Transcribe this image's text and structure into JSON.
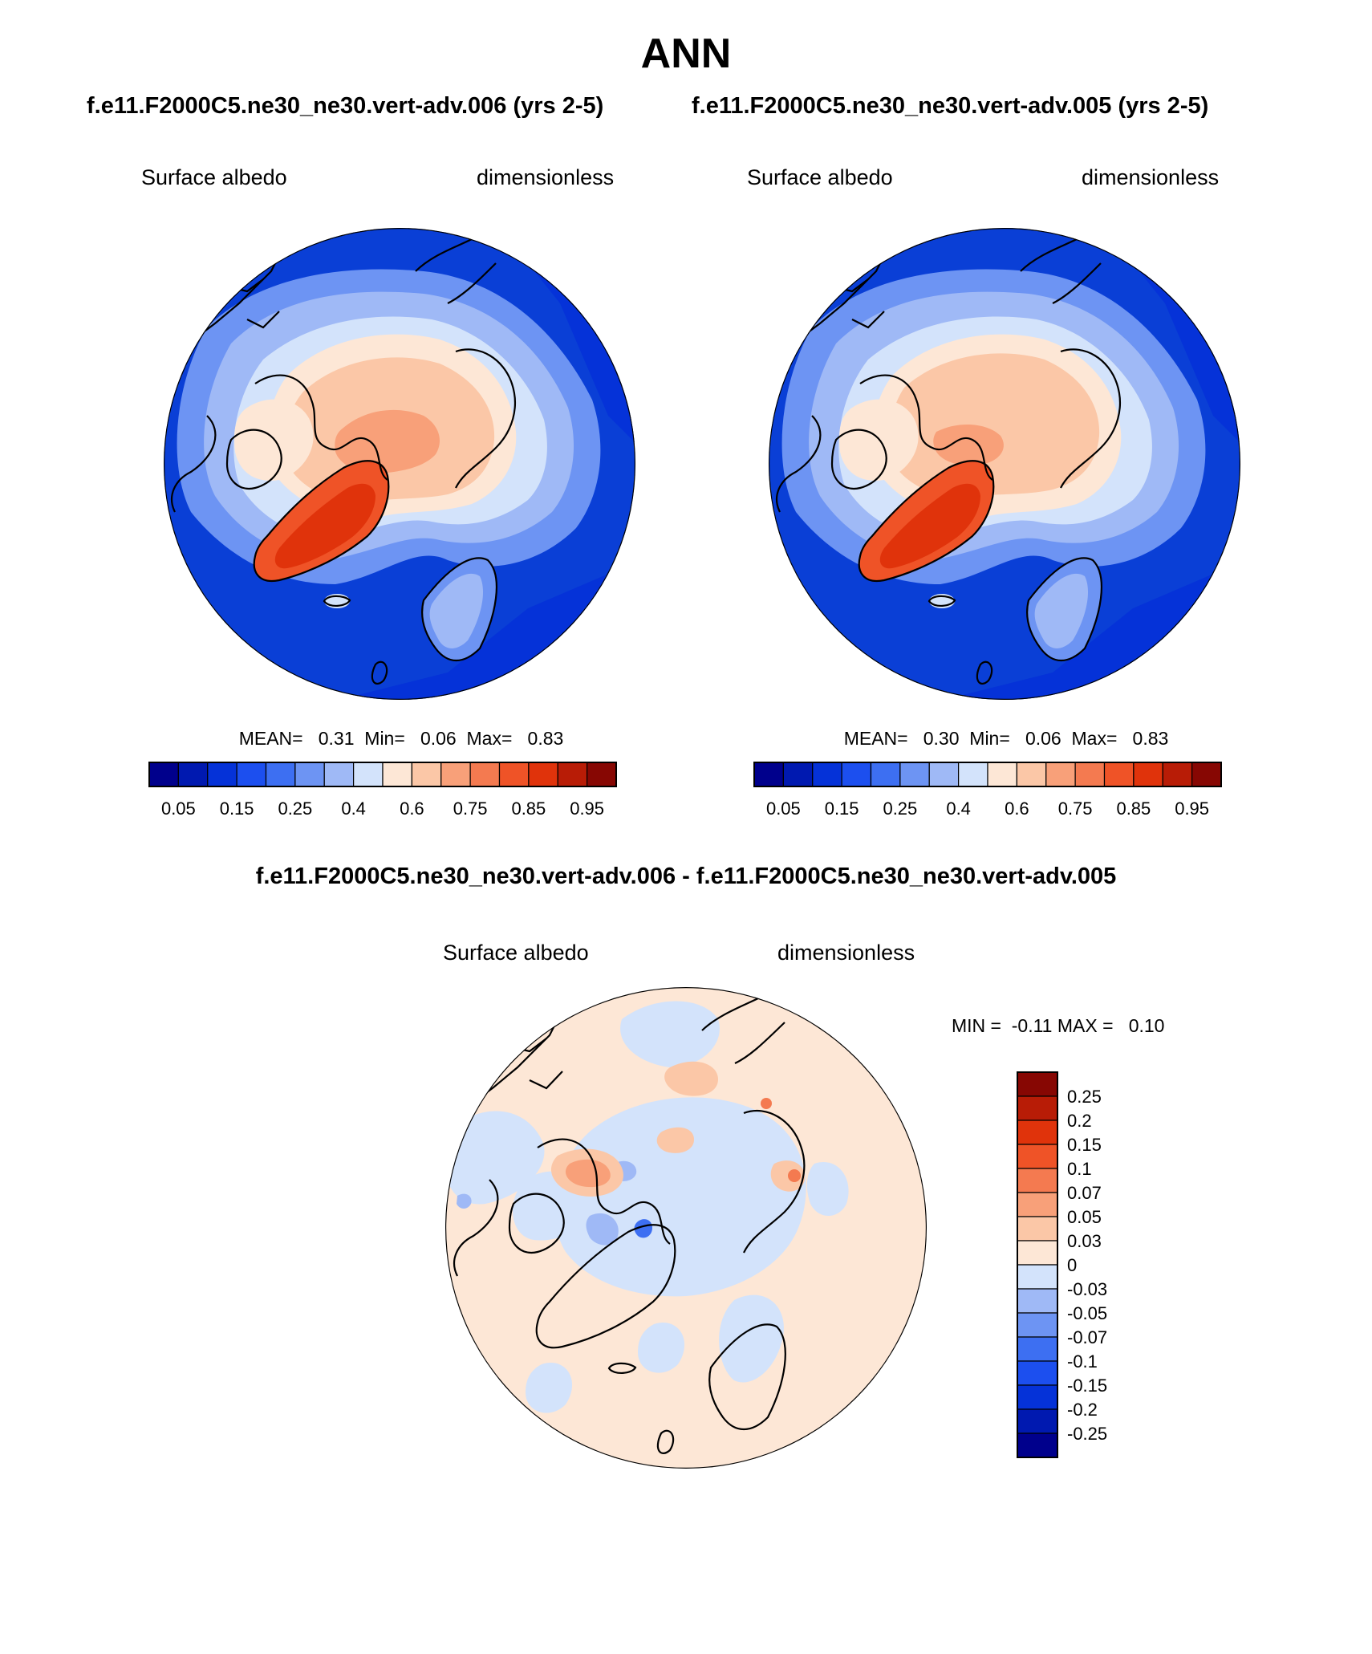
{
  "page": {
    "title": "ANN",
    "subtitle_left": "f.e11.F2000C5.ne30_ne30.vert-adv.006 (yrs 2-5)",
    "subtitle_right": "f.e11.F2000C5.ne30_ne30.vert-adv.005 (yrs 2-5)",
    "diff_title": "f.e11.F2000C5.ne30_ne30.vert-adv.006 - f.e11.F2000C5.ne30_ne30.vert-adv.005"
  },
  "chart_data": [
    {
      "type": "heatmap",
      "projection": "north-polar-stereographic",
      "variable_label": "Surface albedo",
      "units_label": "dimensionless",
      "stats_text": "MEAN=   0.31  Min=   0.06  Max=   0.83",
      "stats": {
        "mean": 0.31,
        "min": 0.06,
        "max": 0.83
      },
      "colorbar": {
        "orientation": "horizontal",
        "levels": [
          "0.05",
          "0.15",
          "0.25",
          "0.4",
          "0.6",
          "0.75",
          "0.85",
          "0.95"
        ],
        "colors": [
          "#00008c",
          "#0019b0",
          "#0532d8",
          "#1c4fef",
          "#3d6ff2",
          "#6d94f3",
          "#9fb9f6",
          "#d3e3fb",
          "#fde7d6",
          "#fbc7a7",
          "#f8a079",
          "#f47a50",
          "#ef5327",
          "#e0330b",
          "#b81c06",
          "#870703"
        ]
      }
    },
    {
      "type": "heatmap",
      "projection": "north-polar-stereographic",
      "variable_label": "Surface albedo",
      "units_label": "dimensionless",
      "stats_text": "MEAN=   0.30  Min=   0.06  Max=   0.83",
      "stats": {
        "mean": 0.3,
        "min": 0.06,
        "max": 0.83
      },
      "colorbar": {
        "orientation": "horizontal",
        "levels": [
          "0.05",
          "0.15",
          "0.25",
          "0.4",
          "0.6",
          "0.75",
          "0.85",
          "0.95"
        ],
        "colors": [
          "#00008c",
          "#0019b0",
          "#0532d8",
          "#1c4fef",
          "#3d6ff2",
          "#6d94f3",
          "#9fb9f6",
          "#d3e3fb",
          "#fde7d6",
          "#fbc7a7",
          "#f8a079",
          "#f47a50",
          "#ef5327",
          "#e0330b",
          "#b81c06",
          "#870703"
        ]
      }
    },
    {
      "type": "heatmap",
      "projection": "north-polar-stereographic",
      "variable_label": "Surface albedo",
      "units_label": "dimensionless",
      "stats_text": "MIN =  -0.11 MAX =   0.10",
      "stats": {
        "min": -0.11,
        "max": 0.1
      },
      "colorbar": {
        "orientation": "vertical",
        "levels": [
          "0.25",
          "0.2",
          "0.15",
          "0.1",
          "0.07",
          "0.05",
          "0.03",
          "0",
          "-0.03",
          "-0.05",
          "-0.07",
          "-0.1",
          "-0.15",
          "-0.2",
          "-0.25"
        ],
        "colors": [
          "#870703",
          "#b81c06",
          "#e0330b",
          "#ef5327",
          "#f47a50",
          "#f8a079",
          "#fbc7a7",
          "#fde7d6",
          "#d3e3fb",
          "#9fb9f6",
          "#6d94f3",
          "#3d6ff2",
          "#1c4fef",
          "#0532d8",
          "#0019b0",
          "#00008c"
        ]
      }
    }
  ]
}
